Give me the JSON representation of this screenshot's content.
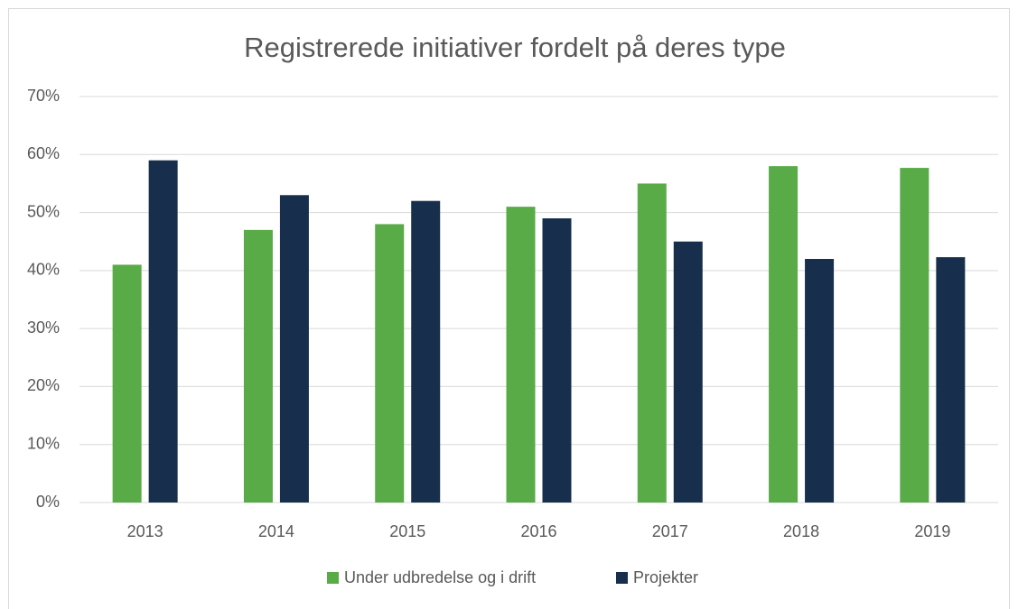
{
  "chart_data": {
    "type": "bar",
    "title": "Registrerede initiativer fordelt på deres type",
    "categories": [
      "2013",
      "2014",
      "2015",
      "2016",
      "2017",
      "2018",
      "2019"
    ],
    "series": [
      {
        "name": "Under udbredelse og i drift",
        "color": "#58ab47",
        "values": [
          41,
          47,
          48,
          51,
          55,
          58,
          57.7
        ]
      },
      {
        "name": "Projekter",
        "color": "#172f4c",
        "values": [
          59,
          53,
          52,
          49,
          45,
          42,
          42.3
        ]
      }
    ],
    "ylim": [
      0,
      70
    ],
    "yticks": [
      {
        "value": 0,
        "label": "0%"
      },
      {
        "value": 10,
        "label": "10%"
      },
      {
        "value": 20,
        "label": "20%"
      },
      {
        "value": 30,
        "label": "30%"
      },
      {
        "value": 40,
        "label": "40%"
      },
      {
        "value": 50,
        "label": "50%"
      },
      {
        "value": 60,
        "label": "60%"
      },
      {
        "value": 70,
        "label": "70%"
      }
    ],
    "grid": true,
    "legend": "bottom"
  }
}
